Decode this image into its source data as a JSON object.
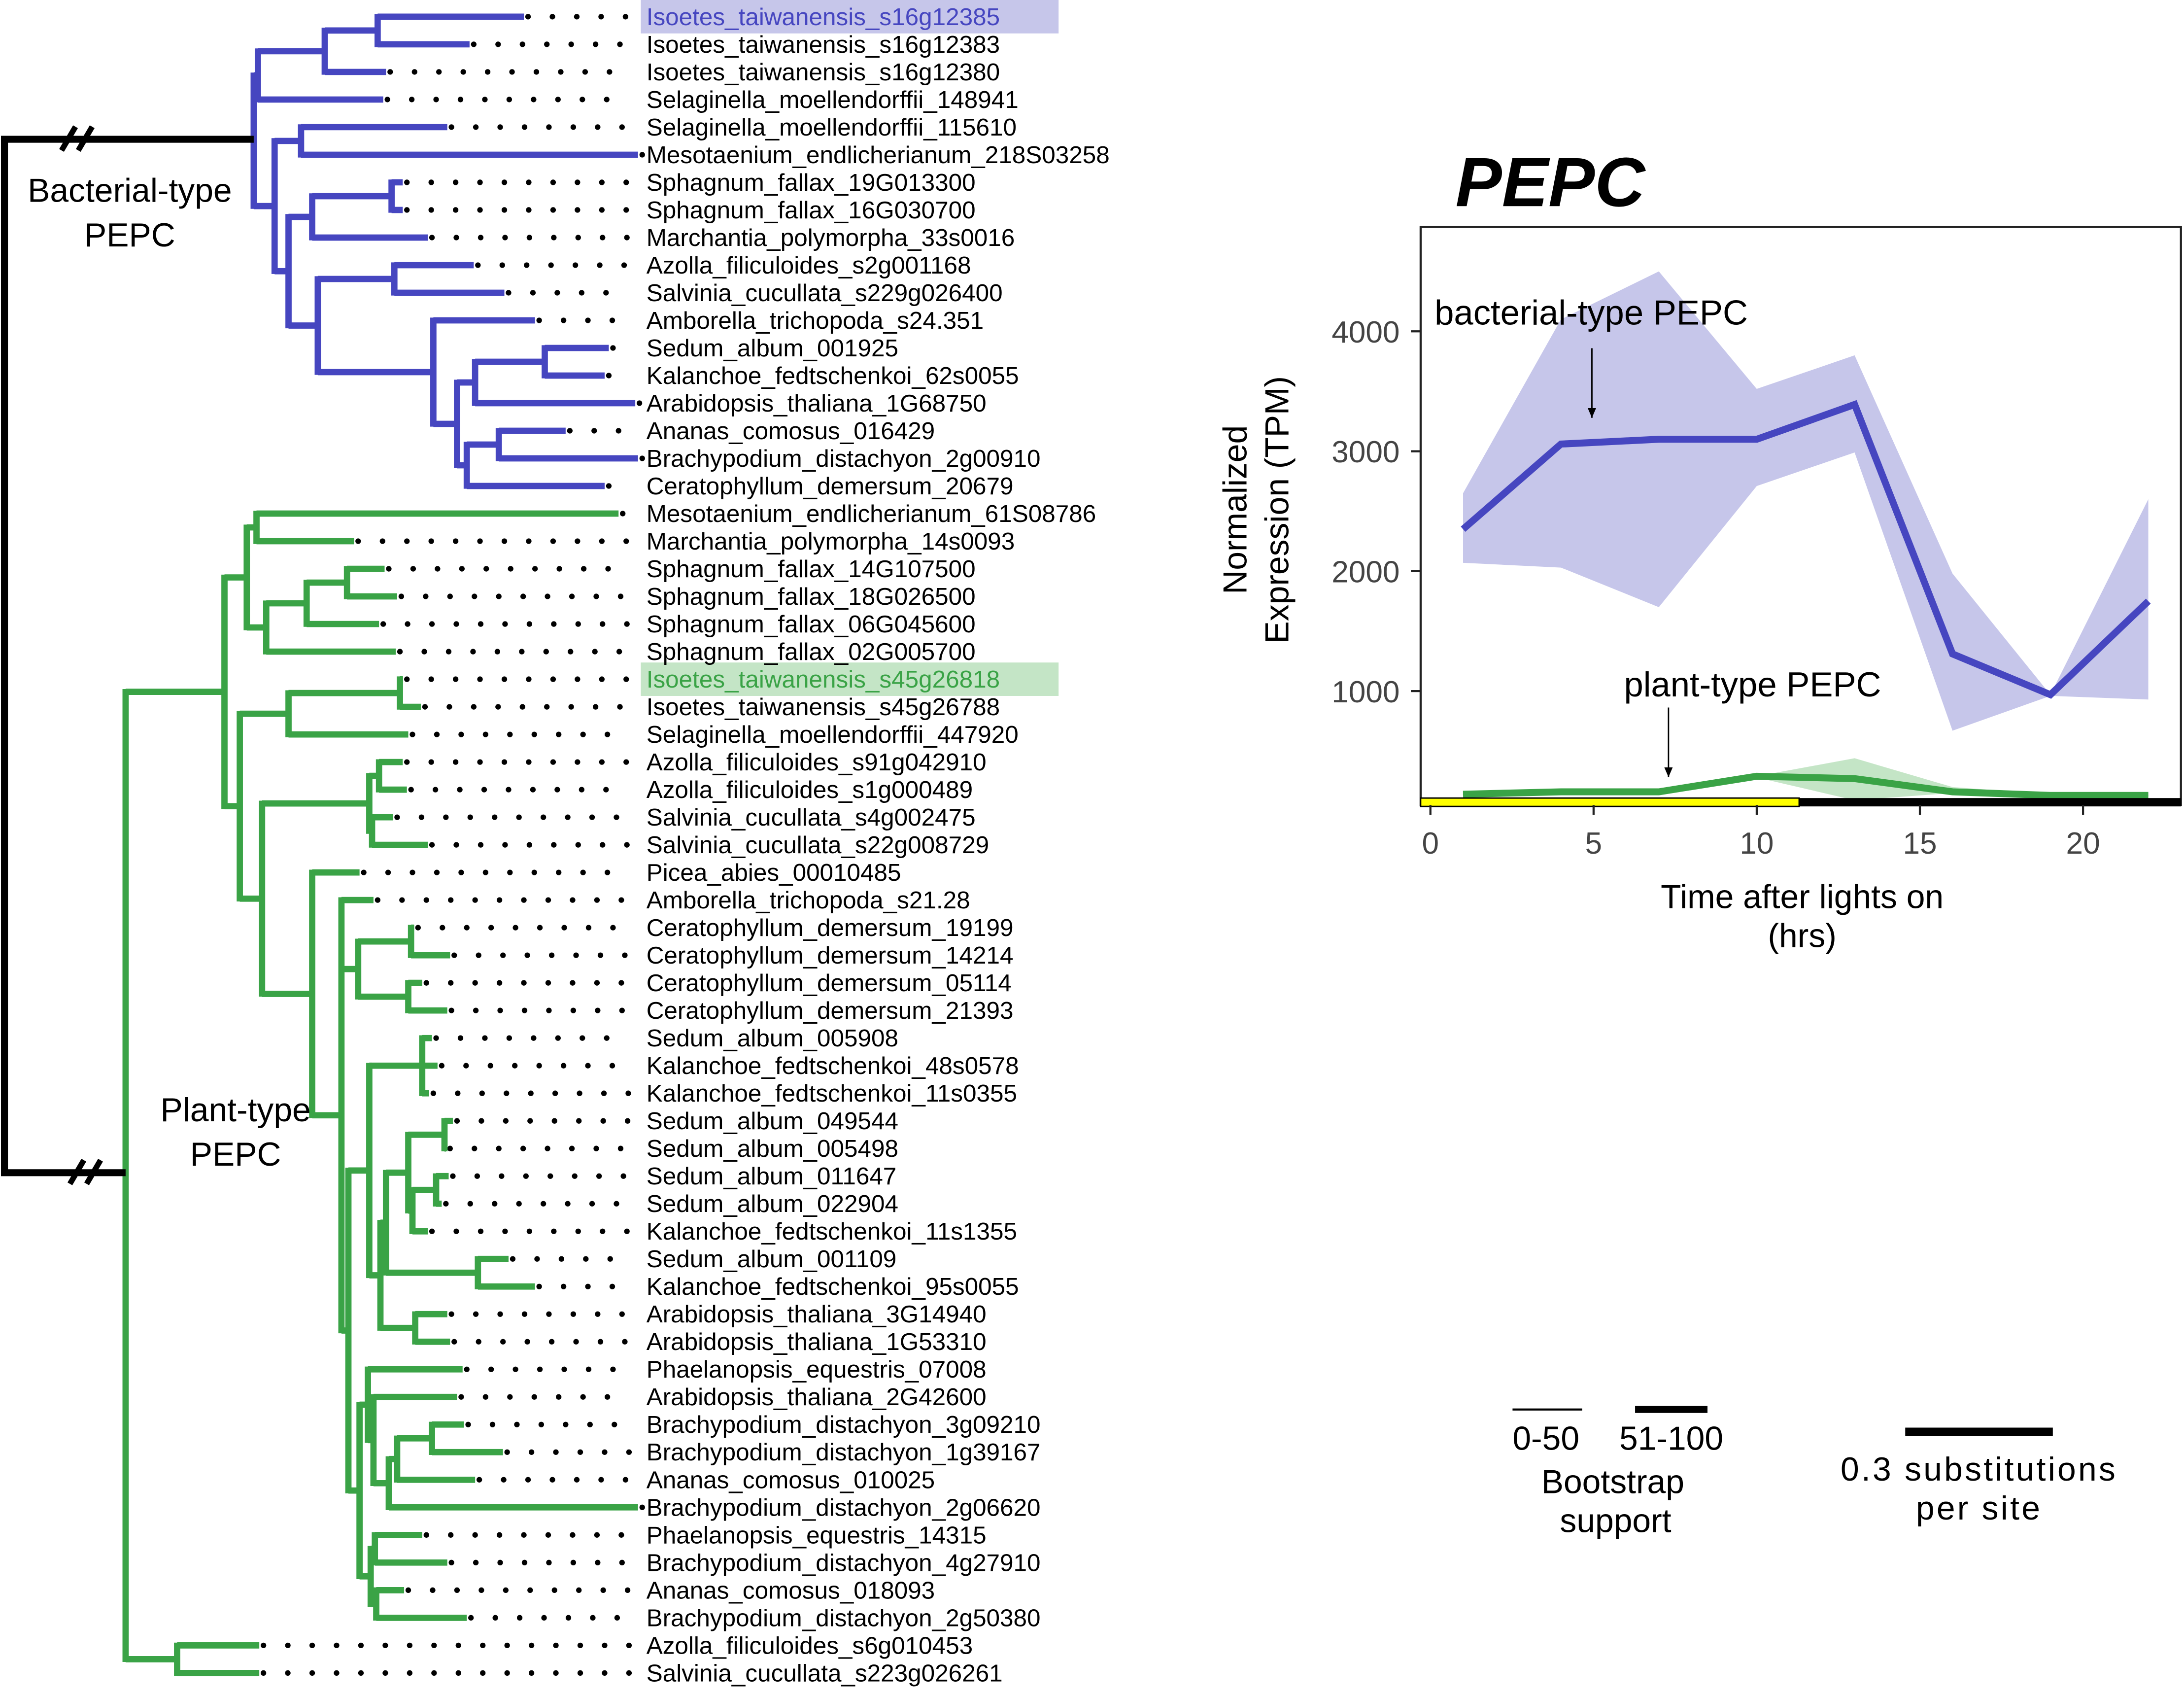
{
  "colors": {
    "bacterial": "#4646c0",
    "bacterial_band": "#c6c6ea",
    "plant": "#3aa346",
    "plant_band": "#c4e5c6",
    "light": "#ffff00",
    "dark": "#000000"
  },
  "tree": {
    "clade_labels": {
      "bacterial": [
        "Bacterial-type",
        "PEPC"
      ],
      "plant": [
        "Plant-type",
        "PEPC"
      ]
    },
    "highlighted": [
      0,
      24
    ],
    "tips": [
      "Isoetes_taiwanensis_s16g12385",
      "Isoetes_taiwanensis_s16g12383",
      "Isoetes_taiwanensis_s16g12380",
      "Selaginella_moellendorffii_148941",
      "Selaginella_moellendorffii_115610",
      "Mesotaenium_endlicherianum_218S03258",
      "Sphagnum_fallax_19G013300",
      "Sphagnum_fallax_16G030700",
      "Marchantia_polymorpha_33s0016",
      "Azolla_filiculoides_s2g001168",
      "Salvinia_cucullata_s229g026400",
      "Amborella_trichopoda_s24.351",
      "Sedum_album_001925",
      "Kalanchoe_fedtschenkoi_62s0055",
      "Arabidopsis_thaliana_1G68750",
      "Ananas_comosus_016429",
      "Brachypodium_distachyon_2g00910",
      "Ceratophyllum_demersum_20679",
      "Mesotaenium_endlicherianum_61S08786",
      "Marchantia_polymorpha_14s0093",
      "Sphagnum_fallax_14G107500",
      "Sphagnum_fallax_18G026500",
      "Sphagnum_fallax_06G045600",
      "Sphagnum_fallax_02G005700",
      "Isoetes_taiwanensis_s45g26818",
      "Isoetes_taiwanensis_s45g26788",
      "Selaginella_moellendorffii_447920",
      "Azolla_filiculoides_s91g042910",
      "Azolla_filiculoides_s1g000489",
      "Salvinia_cucullata_s4g002475",
      "Salvinia_cucullata_s22g008729",
      "Picea_abies_00010485",
      "Amborella_trichopoda_s21.28",
      "Ceratophyllum_demersum_19199",
      "Ceratophyllum_demersum_14214",
      "Ceratophyllum_demersum_05114",
      "Ceratophyllum_demersum_21393",
      "Sedum_album_005908",
      "Kalanchoe_fedtschenkoi_48s0578",
      "Kalanchoe_fedtschenkoi_11s0355",
      "Sedum_album_049544",
      "Sedum_album_005498",
      "Sedum_album_011647",
      "Sedum_album_022904",
      "Kalanchoe_fedtschenkoi_11s1355",
      "Sedum_album_001109",
      "Kalanchoe_fedtschenkoi_95s0055",
      "Arabidopsis_thaliana_3G14940",
      "Arabidopsis_thaliana_1G53310",
      "Phaelanopsis_equestris_07008",
      "Arabidopsis_thaliana_2G42600",
      "Brachypodium_distachyon_3g09210",
      "Brachypodium_distachyon_1g39167",
      "Ananas_comosus_010025",
      "Brachypodium_distachyon_2g06620",
      "Phaelanopsis_equestris_14315",
      "Brachypodium_distachyon_4g27910",
      "Ananas_comosus_018093",
      "Brachypodium_distachyon_2g50380",
      "Azolla_filiculoides_s6g010453",
      "Salvinia_cucullata_s223g026261"
    ]
  },
  "legend": {
    "bootstrap_low": "0-50",
    "bootstrap_high": "51-100",
    "bootstrap_title": [
      "Bootstrap",
      "support"
    ],
    "scale_label": [
      "0.3 substitutions",
      "per site"
    ]
  },
  "chart_data": {
    "type": "line",
    "title": "PEPC",
    "xlabel": [
      "Time after lights on",
      "(hrs)"
    ],
    "ylabel": [
      "Normalized",
      "Expression (TPM)"
    ],
    "xlim": [
      -0.3,
      23
    ],
    "ylim": [
      50,
      4870
    ],
    "xticks": [
      0,
      5,
      10,
      15,
      20
    ],
    "yticks": [
      1000,
      2000,
      3000,
      4000
    ],
    "grid": false,
    "x": [
      1,
      4,
      7,
      10,
      13,
      16,
      19,
      22
    ],
    "series": [
      {
        "name": "bacterial-type PEPC",
        "color": "#4646c0",
        "values": [
          2350,
          3060,
          3100,
          3100,
          3390,
          1310,
          970,
          1750
        ],
        "upper": [
          2650,
          4100,
          4500,
          3520,
          3800,
          1980,
          970,
          2600
        ],
        "lower": [
          2070,
          2030,
          1700,
          2710,
          2990,
          670,
          960,
          930
        ],
        "annotation_x": 5,
        "annotation_y": 3060
      },
      {
        "name": "plant-type PEPC",
        "color": "#3aa346",
        "values": [
          140,
          160,
          160,
          290,
          270,
          160,
          130,
          130
        ],
        "upper": [
          150,
          170,
          180,
          290,
          440,
          200,
          140,
          150
        ],
        "lower": [
          130,
          150,
          150,
          280,
          90,
          150,
          120,
          120
        ],
        "annotation_x": 7.3,
        "annotation_y": 190
      }
    ],
    "photoperiod": {
      "light_until": 11.3,
      "labels": []
    }
  }
}
